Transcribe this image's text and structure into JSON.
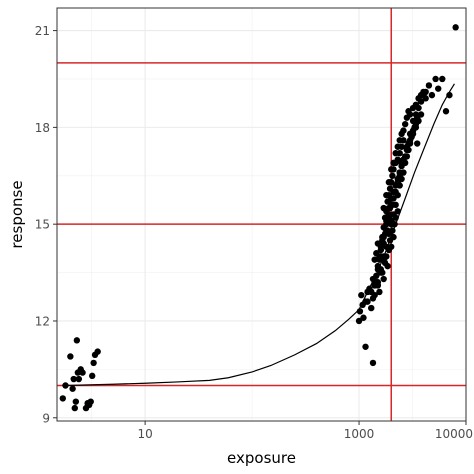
{
  "chart_data": {
    "type": "scatter",
    "xlabel": "exposure",
    "ylabel": "response",
    "x_scale": "log10",
    "xlim": [
      1.5,
      10000
    ],
    "ylim": [
      8.9,
      21.7
    ],
    "x_ticks": [
      10,
      1000,
      10000
    ],
    "x_tick_labels": [
      "10",
      "1000",
      "10000"
    ],
    "y_ticks": [
      9,
      12,
      15,
      18,
      21
    ],
    "y_tick_labels": [
      "9",
      "12",
      "15",
      "18",
      "21"
    ],
    "grid": true,
    "legend": "none",
    "point_color": "#000000",
    "reference_line_color": "#d62728",
    "reference_lines": {
      "horizontal": [
        10,
        15,
        20
      ],
      "vertical": [
        2000
      ]
    },
    "fit_curve": {
      "x": [
        1.8,
        3,
        5,
        10,
        20,
        40,
        60,
        100,
        150,
        250,
        400,
        600,
        800,
        1000,
        1200,
        1500,
        1800,
        2200,
        2700,
        3300,
        4000,
        5000,
        6000,
        7000,
        7800
      ],
      "y": [
        10.0,
        10.02,
        10.04,
        10.07,
        10.11,
        10.16,
        10.24,
        10.42,
        10.62,
        10.95,
        11.3,
        11.7,
        12.05,
        12.35,
        12.9,
        13.55,
        14.2,
        15.0,
        15.8,
        16.6,
        17.3,
        18.1,
        18.7,
        19.1,
        19.35
      ]
    },
    "points": {
      "x": [
        1.7,
        1.8,
        2.0,
        2.1,
        2.15,
        2.2,
        2.25,
        2.3,
        2.35,
        2.4,
        2.5,
        2.6,
        2.8,
        2.9,
        3.0,
        3.1,
        3.2,
        3.3,
        3.4,
        3.6,
        1150,
        1350,
        1000,
        1020,
        1050,
        1080,
        1100,
        1150,
        1200,
        1250,
        1300,
        1350,
        1400,
        1450,
        1500,
        1550,
        1600,
        1650,
        1700,
        1750,
        1800,
        1850,
        1900,
        1950,
        2000,
        2050,
        2100,
        2150,
        2200,
        2300,
        1300,
        1350,
        1400,
        1450,
        1500,
        1550,
        1600,
        1650,
        1700,
        1750,
        1800,
        1850,
        1900,
        1950,
        2000,
        2050,
        2100,
        2200,
        2300,
        2400,
        1400,
        1450,
        1500,
        1550,
        1600,
        1650,
        1700,
        1750,
        1800,
        1850,
        1900,
        1950,
        2000,
        2050,
        2100,
        2200,
        2300,
        2400,
        2500,
        2600,
        1600,
        1700,
        1800,
        1900,
        2000,
        2100,
        2200,
        2300,
        2400,
        2500,
        2600,
        2700,
        2800,
        2900,
        3000,
        3100,
        3200,
        3300,
        3400,
        3500,
        1700,
        1800,
        1900,
        2000,
        2100,
        2200,
        2300,
        2400,
        2500,
        2600,
        2700,
        2800,
        2900,
        3000,
        3200,
        3400,
        3600,
        3800,
        4000,
        4200,
        1500,
        1600,
        1700,
        1800,
        1900,
        2000,
        2100,
        2200,
        2300,
        2400,
        2500,
        2600,
        2700,
        2800,
        2900,
        3000,
        3200,
        3400,
        3600,
        3800,
        1200,
        1300,
        1400,
        1500,
        1600,
        1700,
        1800,
        1900,
        2000,
        2100,
        2200,
        2400,
        2600,
        2800,
        3000,
        3200,
        3400,
        3600,
        3800,
        4000,
        4200,
        4500,
        4800,
        5200,
        5500,
        6000,
        6500,
        7000,
        3500,
        2500,
        8000
      ],
      "y": [
        9.6,
        10.0,
        10.9,
        9.9,
        10.2,
        9.3,
        9.5,
        11.4,
        10.4,
        10.2,
        10.5,
        10.4,
        9.3,
        9.45,
        9.4,
        9.5,
        10.3,
        10.7,
        10.95,
        11.05,
        11.2,
        10.7,
        12.0,
        12.3,
        12.8,
        12.5,
        12.1,
        12.6,
        12.9,
        13.0,
        12.4,
        12.7,
        13.1,
        13.4,
        13.2,
        12.9,
        13.6,
        13.5,
        13.3,
        13.8,
        14.0,
        13.7,
        14.2,
        14.5,
        14.3,
        14.8,
        14.6,
        15.0,
        15.2,
        15.4,
        12.9,
        13.3,
        13.9,
        14.1,
        14.4,
        13.9,
        14.3,
        14.6,
        14.0,
        14.7,
        15.0,
        14.8,
        15.3,
        15.5,
        15.1,
        15.6,
        15.8,
        16.0,
        16.3,
        16.5,
        12.8,
        13.2,
        13.7,
        14.0,
        14.2,
        14.5,
        14.9,
        15.2,
        15.4,
        15.7,
        15.9,
        16.1,
        16.3,
        16.5,
        16.7,
        16.9,
        17.0,
        17.2,
        17.4,
        17.6,
        14.0,
        14.6,
        15.1,
        15.5,
        15.8,
        16.0,
        16.2,
        16.4,
        16.6,
        16.8,
        17.0,
        17.1,
        17.3,
        17.5,
        17.6,
        17.7,
        17.9,
        18.0,
        18.1,
        18.3,
        15.5,
        15.9,
        16.3,
        16.7,
        16.9,
        17.2,
        17.4,
        17.6,
        17.8,
        17.9,
        18.1,
        18.3,
        18.5,
        18.4,
        18.6,
        18.7,
        18.9,
        19.0,
        19.1,
        18.9,
        13.1,
        13.5,
        13.9,
        14.3,
        14.7,
        15.0,
        15.3,
        15.6,
        15.9,
        16.2,
        16.4,
        16.6,
        16.9,
        17.1,
        17.3,
        17.5,
        17.8,
        18.0,
        18.2,
        18.4,
        12.6,
        12.9,
        13.2,
        13.6,
        14.0,
        14.4,
        14.8,
        15.2,
        15.6,
        16.0,
        16.2,
        16.6,
        17.0,
        17.4,
        17.8,
        18.2,
        18.4,
        18.6,
        18.8,
        19.0,
        19.1,
        19.3,
        19.0,
        19.5,
        19.2,
        19.5,
        18.5,
        19.0,
        17.5,
        16.9,
        21.1
      ]
    }
  }
}
